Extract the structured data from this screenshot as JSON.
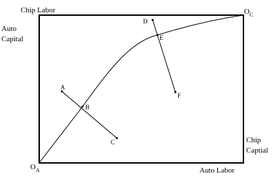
{
  "labels": {
    "top": "Chip Labor",
    "left": [
      "Auto",
      "Capital"
    ],
    "right": [
      "Chip",
      "Captial"
    ],
    "bottom": "Auto Labor"
  },
  "origins": {
    "a": {
      "label": "O",
      "subscript": "A"
    },
    "c": {
      "label": "O",
      "subscript": "C"
    }
  },
  "points": [
    "A",
    "B",
    "C",
    "D",
    "E",
    "F"
  ]
}
